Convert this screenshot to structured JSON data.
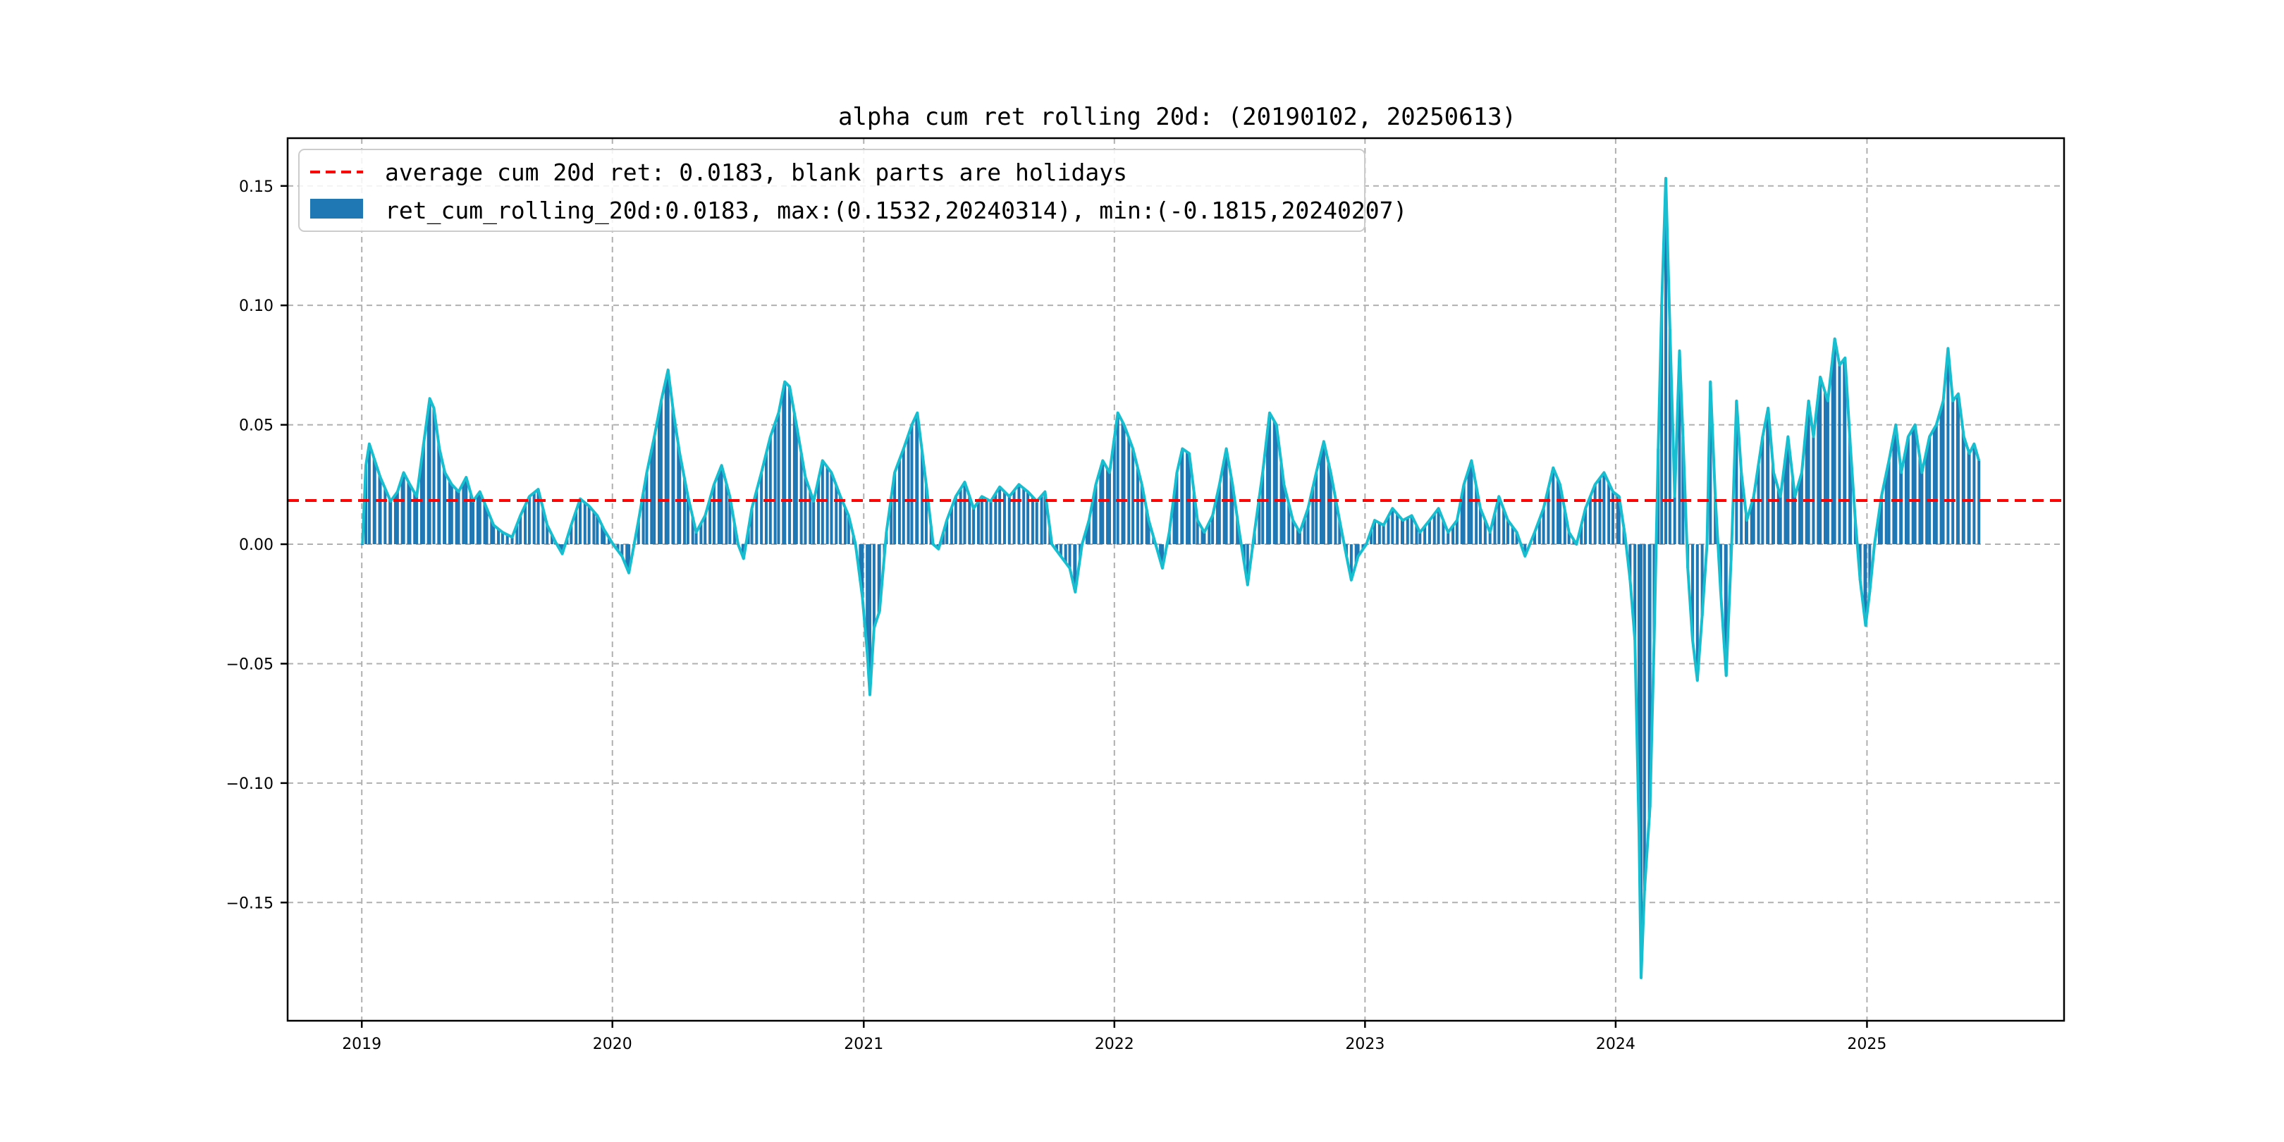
{
  "chart_data": {
    "type": "bar",
    "title": "alpha cum ret rolling 20d: (20190102, 20250613)",
    "xlabel": "",
    "ylabel": "",
    "x_range": [
      "2018-09-15",
      "2025-10-15"
    ],
    "ylim": [
      -0.1995,
      0.17
    ],
    "grid": true,
    "legend_position": "top-left",
    "x_ticks": [
      "2019",
      "2020",
      "2021",
      "2022",
      "2023",
      "2024",
      "2025"
    ],
    "y_ticks": [
      "0.15",
      "0.10",
      "0.05",
      "0.00",
      "−0.05",
      "−0.10",
      "−0.15"
    ],
    "legend": {
      "line_label": "average cum 20d ret: 0.0183, blank parts are holidays",
      "bar_label": "ret_cum_rolling_20d:0.0183, max:(0.1532,20240314), min:(-0.1815,20240207)"
    },
    "average": 0.0183,
    "colors": {
      "bar": "#1f77b4",
      "line": "#17becf",
      "average": "#ff0000"
    },
    "series_points": [
      [
        "2019-01-02",
        0.0
      ],
      [
        "2019-01-07",
        0.033
      ],
      [
        "2019-01-12",
        0.042
      ],
      [
        "2019-01-20",
        0.035
      ],
      [
        "2019-01-28",
        0.028
      ],
      [
        "2019-02-12",
        0.018
      ],
      [
        "2019-02-22",
        0.022
      ],
      [
        "2019-03-03",
        0.03
      ],
      [
        "2019-03-12",
        0.025
      ],
      [
        "2019-03-22",
        0.02
      ],
      [
        "2019-04-01",
        0.042
      ],
      [
        "2019-04-10",
        0.061
      ],
      [
        "2019-04-16",
        0.057
      ],
      [
        "2019-04-24",
        0.04
      ],
      [
        "2019-05-02",
        0.03
      ],
      [
        "2019-05-12",
        0.025
      ],
      [
        "2019-05-22",
        0.022
      ],
      [
        "2019-06-02",
        0.028
      ],
      [
        "2019-06-12",
        0.018
      ],
      [
        "2019-06-22",
        0.022
      ],
      [
        "2019-07-02",
        0.015
      ],
      [
        "2019-07-12",
        0.008
      ],
      [
        "2019-07-25",
        0.005
      ],
      [
        "2019-08-08",
        0.003
      ],
      [
        "2019-08-20",
        0.012
      ],
      [
        "2019-09-02",
        0.02
      ],
      [
        "2019-09-15",
        0.023
      ],
      [
        "2019-09-28",
        0.008
      ],
      [
        "2019-10-10",
        0.001
      ],
      [
        "2019-10-20",
        -0.004
      ],
      [
        "2019-11-02",
        0.008
      ],
      [
        "2019-11-15",
        0.019
      ],
      [
        "2019-11-28",
        0.016
      ],
      [
        "2019-12-10",
        0.012
      ],
      [
        "2019-12-20",
        0.006
      ],
      [
        "2020-01-02",
        0.0
      ],
      [
        "2020-01-15",
        -0.005
      ],
      [
        "2020-01-25",
        -0.012
      ],
      [
        "2020-02-08",
        0.01
      ],
      [
        "2020-02-20",
        0.03
      ],
      [
        "2020-03-02",
        0.045
      ],
      [
        "2020-03-12",
        0.06
      ],
      [
        "2020-03-22",
        0.073
      ],
      [
        "2020-03-30",
        0.055
      ],
      [
        "2020-04-08",
        0.038
      ],
      [
        "2020-04-20",
        0.02
      ],
      [
        "2020-05-02",
        0.005
      ],
      [
        "2020-05-15",
        0.012
      ],
      [
        "2020-05-28",
        0.025
      ],
      [
        "2020-06-08",
        0.033
      ],
      [
        "2020-06-20",
        0.02
      ],
      [
        "2020-07-02",
        0.0
      ],
      [
        "2020-07-10",
        -0.006
      ],
      [
        "2020-07-22",
        0.015
      ],
      [
        "2020-08-05",
        0.03
      ],
      [
        "2020-08-18",
        0.045
      ],
      [
        "2020-08-30",
        0.055
      ],
      [
        "2020-09-08",
        0.068
      ],
      [
        "2020-09-15",
        0.066
      ],
      [
        "2020-09-25",
        0.05
      ],
      [
        "2020-10-08",
        0.028
      ],
      [
        "2020-10-20",
        0.018
      ],
      [
        "2020-11-02",
        0.035
      ],
      [
        "2020-11-15",
        0.03
      ],
      [
        "2020-11-28",
        0.02
      ],
      [
        "2020-12-10",
        0.012
      ],
      [
        "2020-12-20",
        0.0
      ],
      [
        "2020-12-30",
        -0.022
      ],
      [
        "2021-01-06",
        -0.045
      ],
      [
        "2021-01-10",
        -0.063
      ],
      [
        "2021-01-16",
        -0.035
      ],
      [
        "2021-01-24",
        -0.028
      ],
      [
        "2021-02-03",
        0.005
      ],
      [
        "2021-02-15",
        0.03
      ],
      [
        "2021-02-28",
        0.04
      ],
      [
        "2021-03-12",
        0.05
      ],
      [
        "2021-03-20",
        0.055
      ],
      [
        "2021-04-02",
        0.025
      ],
      [
        "2021-04-12",
        0.0
      ],
      [
        "2021-04-20",
        -0.002
      ],
      [
        "2021-05-02",
        0.01
      ],
      [
        "2021-05-15",
        0.02
      ],
      [
        "2021-05-28",
        0.026
      ],
      [
        "2021-06-10",
        0.015
      ],
      [
        "2021-06-22",
        0.02
      ],
      [
        "2021-07-05",
        0.018
      ],
      [
        "2021-07-18",
        0.024
      ],
      [
        "2021-08-01",
        0.02
      ],
      [
        "2021-08-15",
        0.025
      ],
      [
        "2021-08-28",
        0.022
      ],
      [
        "2021-09-10",
        0.018
      ],
      [
        "2021-09-22",
        0.022
      ],
      [
        "2021-10-02",
        0.0
      ],
      [
        "2021-10-15",
        -0.005
      ],
      [
        "2021-10-28",
        -0.01
      ],
      [
        "2021-11-05",
        -0.02
      ],
      [
        "2021-11-15",
        0.0
      ],
      [
        "2021-11-25",
        0.01
      ],
      [
        "2021-12-05",
        0.025
      ],
      [
        "2021-12-15",
        0.035
      ],
      [
        "2021-12-25",
        0.03
      ],
      [
        "2022-01-06",
        0.055
      ],
      [
        "2022-01-15",
        0.05
      ],
      [
        "2022-01-28",
        0.04
      ],
      [
        "2022-02-10",
        0.025
      ],
      [
        "2022-02-20",
        0.01
      ],
      [
        "2022-03-02",
        0.0
      ],
      [
        "2022-03-12",
        -0.01
      ],
      [
        "2022-03-22",
        0.005
      ],
      [
        "2022-04-02",
        0.03
      ],
      [
        "2022-04-10",
        0.04
      ],
      [
        "2022-04-20",
        0.038
      ],
      [
        "2022-05-02",
        0.01
      ],
      [
        "2022-05-12",
        0.005
      ],
      [
        "2022-05-24",
        0.012
      ],
      [
        "2022-06-03",
        0.025
      ],
      [
        "2022-06-13",
        0.04
      ],
      [
        "2022-06-22",
        0.025
      ],
      [
        "2022-07-02",
        0.005
      ],
      [
        "2022-07-14",
        -0.017
      ],
      [
        "2022-07-24",
        0.005
      ],
      [
        "2022-08-05",
        0.03
      ],
      [
        "2022-08-15",
        0.055
      ],
      [
        "2022-08-25",
        0.05
      ],
      [
        "2022-09-05",
        0.025
      ],
      [
        "2022-09-18",
        0.01
      ],
      [
        "2022-09-28",
        0.005
      ],
      [
        "2022-10-10",
        0.015
      ],
      [
        "2022-10-22",
        0.03
      ],
      [
        "2022-11-02",
        0.043
      ],
      [
        "2022-11-12",
        0.03
      ],
      [
        "2022-11-25",
        0.01
      ],
      [
        "2022-12-05",
        -0.005
      ],
      [
        "2022-12-12",
        -0.015
      ],
      [
        "2022-12-22",
        -0.005
      ],
      [
        "2023-01-03",
        0.0
      ],
      [
        "2023-01-15",
        0.01
      ],
      [
        "2023-01-28",
        0.008
      ],
      [
        "2023-02-10",
        0.015
      ],
      [
        "2023-02-25",
        0.01
      ],
      [
        "2023-03-10",
        0.012
      ],
      [
        "2023-03-22",
        0.005
      ],
      [
        "2023-04-05",
        0.01
      ],
      [
        "2023-04-18",
        0.015
      ],
      [
        "2023-05-02",
        0.005
      ],
      [
        "2023-05-15",
        0.01
      ],
      [
        "2023-05-25",
        0.025
      ],
      [
        "2023-06-05",
        0.035
      ],
      [
        "2023-06-18",
        0.015
      ],
      [
        "2023-07-02",
        0.005
      ],
      [
        "2023-07-15",
        0.02
      ],
      [
        "2023-07-28",
        0.01
      ],
      [
        "2023-08-10",
        0.005
      ],
      [
        "2023-08-22",
        -0.005
      ],
      [
        "2023-09-05",
        0.005
      ],
      [
        "2023-09-18",
        0.015
      ],
      [
        "2023-10-02",
        0.032
      ],
      [
        "2023-10-12",
        0.025
      ],
      [
        "2023-10-25",
        0.005
      ],
      [
        "2023-11-05",
        0.0
      ],
      [
        "2023-11-18",
        0.015
      ],
      [
        "2023-12-02",
        0.025
      ],
      [
        "2023-12-15",
        0.03
      ],
      [
        "2023-12-28",
        0.022
      ],
      [
        "2024-01-06",
        0.02
      ],
      [
        "2024-01-15",
        0.003
      ],
      [
        "2024-01-22",
        -0.015
      ],
      [
        "2024-01-29",
        -0.04
      ],
      [
        "2024-02-04",
        -0.12
      ],
      [
        "2024-02-07",
        -0.1815
      ],
      [
        "2024-02-12",
        -0.145
      ],
      [
        "2024-02-20",
        -0.11
      ],
      [
        "2024-02-26",
        -0.04
      ],
      [
        "2024-03-03",
        0.04
      ],
      [
        "2024-03-08",
        0.1
      ],
      [
        "2024-03-14",
        0.1532
      ],
      [
        "2024-03-20",
        0.09
      ],
      [
        "2024-03-27",
        0.02
      ],
      [
        "2024-04-03",
        0.081
      ],
      [
        "2024-04-08",
        0.045
      ],
      [
        "2024-04-15",
        -0.01
      ],
      [
        "2024-04-22",
        -0.04
      ],
      [
        "2024-04-29",
        -0.057
      ],
      [
        "2024-05-06",
        -0.03
      ],
      [
        "2024-05-13",
        0.0
      ],
      [
        "2024-05-18",
        0.068
      ],
      [
        "2024-05-25",
        0.02
      ],
      [
        "2024-06-02",
        -0.02
      ],
      [
        "2024-06-10",
        -0.055
      ],
      [
        "2024-06-18",
        0.0
      ],
      [
        "2024-06-25",
        0.06
      ],
      [
        "2024-07-02",
        0.03
      ],
      [
        "2024-07-10",
        0.01
      ],
      [
        "2024-07-20",
        0.02
      ],
      [
        "2024-08-02",
        0.045
      ],
      [
        "2024-08-10",
        0.057
      ],
      [
        "2024-08-18",
        0.03
      ],
      [
        "2024-08-28",
        0.02
      ],
      [
        "2024-09-08",
        0.045
      ],
      [
        "2024-09-18",
        0.02
      ],
      [
        "2024-09-28",
        0.03
      ],
      [
        "2024-10-08",
        0.06
      ],
      [
        "2024-10-15",
        0.045
      ],
      [
        "2024-10-25",
        0.07
      ],
      [
        "2024-11-05",
        0.06
      ],
      [
        "2024-11-15",
        0.086
      ],
      [
        "2024-11-22",
        0.075
      ],
      [
        "2024-11-30",
        0.078
      ],
      [
        "2024-12-08",
        0.04
      ],
      [
        "2024-12-15",
        0.01
      ],
      [
        "2024-12-22",
        -0.015
      ],
      [
        "2024-12-30",
        -0.034
      ],
      [
        "2025-01-05",
        -0.02
      ],
      [
        "2025-01-12",
        0.0
      ],
      [
        "2025-01-22",
        0.02
      ],
      [
        "2025-02-02",
        0.035
      ],
      [
        "2025-02-12",
        0.05
      ],
      [
        "2025-02-20",
        0.03
      ],
      [
        "2025-03-02",
        0.045
      ],
      [
        "2025-03-12",
        0.05
      ],
      [
        "2025-03-22",
        0.03
      ],
      [
        "2025-04-02",
        0.045
      ],
      [
        "2025-04-12",
        0.05
      ],
      [
        "2025-04-22",
        0.06
      ],
      [
        "2025-04-29",
        0.082
      ],
      [
        "2025-05-06",
        0.06
      ],
      [
        "2025-05-14",
        0.063
      ],
      [
        "2025-05-22",
        0.045
      ],
      [
        "2025-05-30",
        0.038
      ],
      [
        "2025-06-06",
        0.042
      ],
      [
        "2025-06-13",
        0.035
      ]
    ]
  }
}
